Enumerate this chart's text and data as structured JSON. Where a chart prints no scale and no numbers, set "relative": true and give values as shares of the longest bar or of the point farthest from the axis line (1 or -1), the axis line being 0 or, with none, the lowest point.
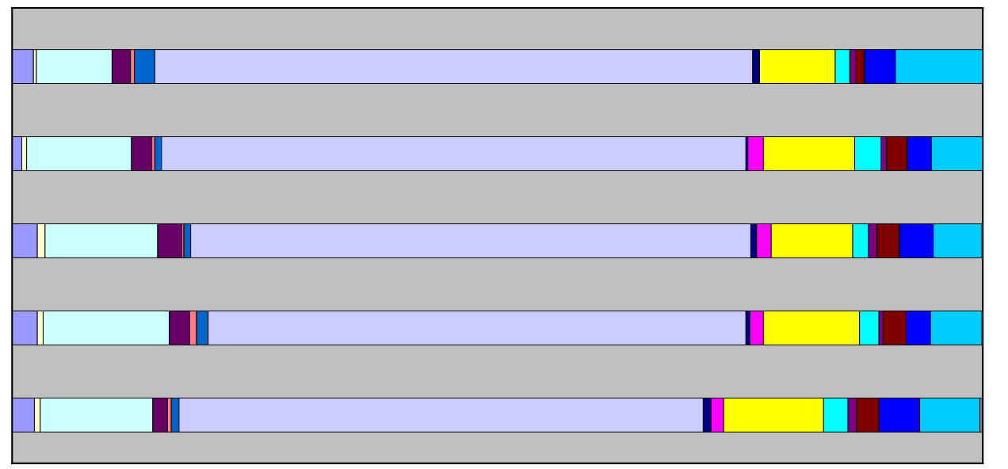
{
  "chart_data": {
    "type": "bar",
    "orientation": "horizontal",
    "stacked": true,
    "relative": true,
    "categories": [
      null,
      null,
      null,
      null,
      null
    ],
    "series": [
      {
        "color": "#9999ff",
        "values": [
          0.022,
          0.01,
          0.026,
          0.026,
          0.023
        ]
      },
      {
        "color": "#ffffcc",
        "values": [
          0.003,
          0.005,
          0.008,
          0.006,
          0.006
        ]
      },
      {
        "color": "#ccffff",
        "values": [
          0.078,
          0.108,
          0.116,
          0.13,
          0.116
        ]
      },
      {
        "color": "#660066",
        "values": [
          0.019,
          0.021,
          0.025,
          0.021,
          0.015
        ]
      },
      {
        "color": "#ff8080",
        "values": [
          0.004,
          0.003,
          0.002,
          0.007,
          0.004
        ]
      },
      {
        "color": "#0066cc",
        "values": [
          0.021,
          0.007,
          0.007,
          0.012,
          0.008
        ]
      },
      {
        "color": "#ccccff",
        "values": [
          0.616,
          0.602,
          0.577,
          0.554,
          0.54
        ]
      },
      {
        "color": "#000080",
        "values": [
          0.007,
          0.002,
          0.006,
          0.004,
          0.008
        ]
      },
      {
        "color": "#ff00ff",
        "values": [
          0,
          0.016,
          0.015,
          0.014,
          0.013
        ]
      },
      {
        "color": "#ffff00",
        "values": [
          0.078,
          0.094,
          0.084,
          0.099,
          0.103
        ]
      },
      {
        "color": "#00ffff",
        "values": [
          0.015,
          0.027,
          0.016,
          0.02,
          0.025
        ]
      },
      {
        "color": "#800080",
        "values": [
          0.006,
          0.006,
          0.009,
          0.004,
          0.009
        ]
      },
      {
        "color": "#800000",
        "values": [
          0.009,
          0.021,
          0.023,
          0.024,
          0.023
        ]
      },
      {
        "color": "#0000ff",
        "values": [
          0.032,
          0.025,
          0.035,
          0.025,
          0.042
        ]
      },
      {
        "color": "#00ccff",
        "values": [
          0.09,
          0.053,
          0.05,
          0.053,
          0.062
        ]
      },
      {
        "color": "#8080a0",
        "values": [
          0,
          0,
          0,
          0,
          0.003
        ]
      }
    ]
  }
}
